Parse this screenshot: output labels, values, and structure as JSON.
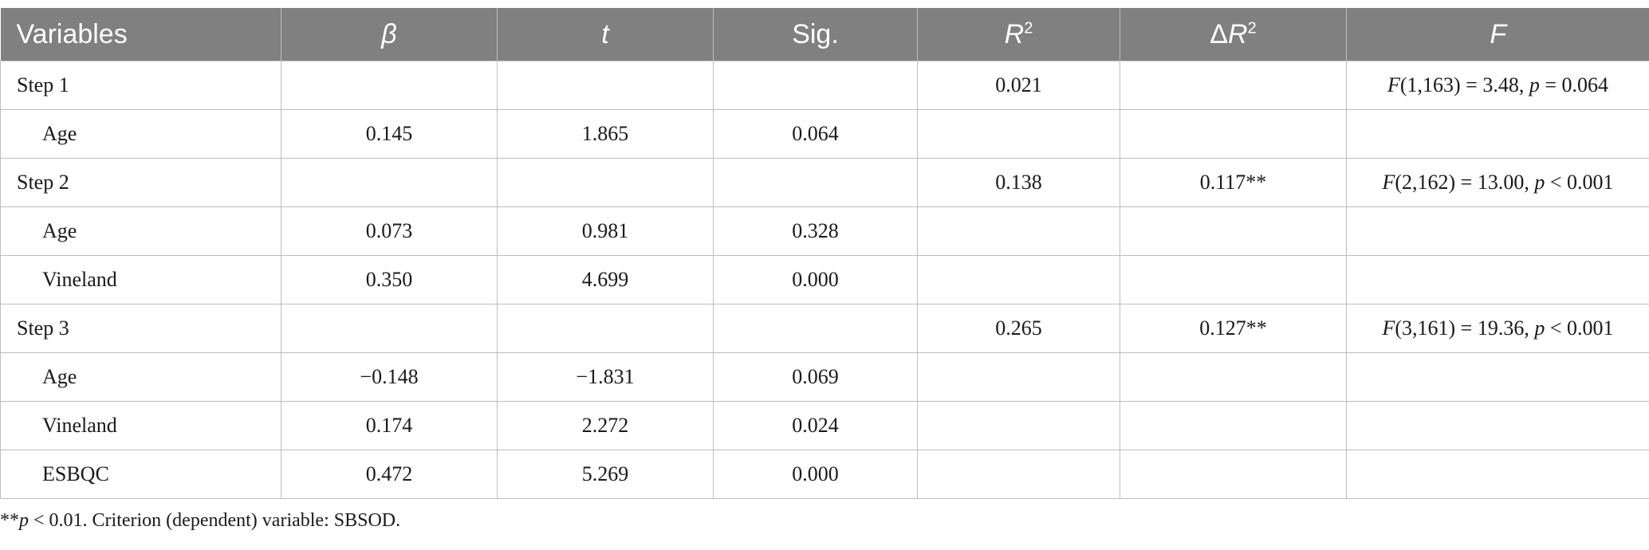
{
  "table": {
    "headers": {
      "variables": "Variables",
      "beta": "β",
      "t": "t",
      "sig": "Sig.",
      "r2_letter": "R",
      "r2_sup": "2",
      "dr2_delta": "Δ",
      "dr2_letter": "R",
      "dr2_sup": "2",
      "f": "F"
    },
    "rows": [
      {
        "variable": "Step 1",
        "step": true,
        "beta": "",
        "t": "",
        "sig": "",
        "r2": "0.021",
        "dr2": "",
        "f_letter": "F",
        "f_rest1": "(1,163) = 3.48, ",
        "f_p": "p",
        "f_rest2": " = 0.064"
      },
      {
        "variable": "Age",
        "step": false,
        "beta": "0.145",
        "t": "1.865",
        "sig": "0.064",
        "r2": "",
        "dr2": "",
        "f_letter": "",
        "f_rest1": "",
        "f_p": "",
        "f_rest2": ""
      },
      {
        "variable": "Step 2",
        "step": true,
        "beta": "",
        "t": "",
        "sig": "",
        "r2": "0.138",
        "dr2": "0.117**",
        "f_letter": "F",
        "f_rest1": "(2,162) = 13.00, ",
        "f_p": "p",
        "f_rest2": " < 0.001"
      },
      {
        "variable": "Age",
        "step": false,
        "beta": "0.073",
        "t": "0.981",
        "sig": "0.328",
        "r2": "",
        "dr2": "",
        "f_letter": "",
        "f_rest1": "",
        "f_p": "",
        "f_rest2": ""
      },
      {
        "variable": "Vineland",
        "step": false,
        "beta": "0.350",
        "t": "4.699",
        "sig": "0.000",
        "r2": "",
        "dr2": "",
        "f_letter": "",
        "f_rest1": "",
        "f_p": "",
        "f_rest2": ""
      },
      {
        "variable": "Step 3",
        "step": true,
        "beta": "",
        "t": "",
        "sig": "",
        "r2": "0.265",
        "dr2": "0.127**",
        "f_letter": "F",
        "f_rest1": "(3,161) = 19.36, ",
        "f_p": "p",
        "f_rest2": " < 0.001"
      },
      {
        "variable": "Age",
        "step": false,
        "beta": "−0.148",
        "t": "−1.831",
        "sig": "0.069",
        "r2": "",
        "dr2": "",
        "f_letter": "",
        "f_rest1": "",
        "f_p": "",
        "f_rest2": ""
      },
      {
        "variable": "Vineland",
        "step": false,
        "beta": "0.174",
        "t": "2.272",
        "sig": "0.024",
        "r2": "",
        "dr2": "",
        "f_letter": "",
        "f_rest1": "",
        "f_p": "",
        "f_rest2": ""
      },
      {
        "variable": "ESBQC",
        "step": false,
        "beta": "0.472",
        "t": "5.269",
        "sig": "0.000",
        "r2": "",
        "dr2": "",
        "f_letter": "",
        "f_rest1": "",
        "f_p": "",
        "f_rest2": ""
      }
    ]
  },
  "footnote": {
    "stars": "**",
    "p": "p",
    "text": " < 0.01. Criterion (dependent) variable: SBSOD."
  },
  "colors": {
    "header_bg": "#808080",
    "header_text": "#ffffff",
    "grid": "#bdbdbd"
  }
}
